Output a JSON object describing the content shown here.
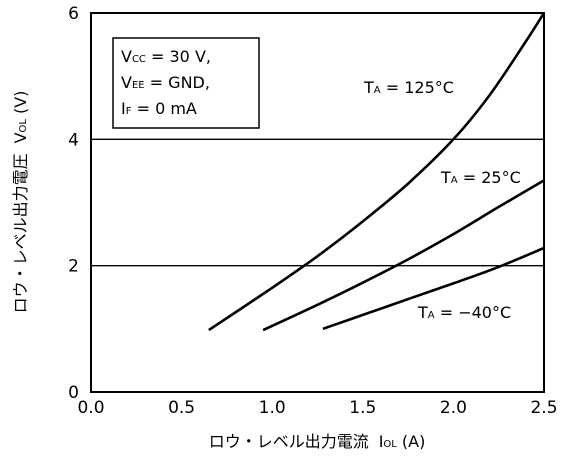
{
  "chart_data": {
    "type": "line",
    "xlabel": {
      "prefix": "ロウ・レベル出力電流",
      "symbol": "I",
      "sub": "OL",
      "unit": "(A)"
    },
    "ylabel": {
      "prefix": "ロウ・レベル出力電圧",
      "symbol": "V",
      "sub": "OL",
      "unit": "(V)"
    },
    "xlim": [
      0,
      2.5
    ],
    "ylim": [
      0,
      6
    ],
    "xticks": [
      "0.0",
      "0.5",
      "1.0",
      "1.5",
      "2.0",
      "2.5"
    ],
    "yticks": [
      "0",
      "2",
      "4",
      "6"
    ],
    "grid_y": [
      2,
      4
    ],
    "conditions": [
      {
        "pre": "V",
        "sub": "CC",
        "post": " = 30 V,"
      },
      {
        "pre": "V",
        "sub": "EE",
        "post": " = GND,"
      },
      {
        "pre": "I",
        "sub": "F",
        "post": " = 0 mA"
      }
    ],
    "series": [
      {
        "name_pre": "T",
        "name_sub": "A",
        "name_post": " = 125°C",
        "x": [
          0.65,
          1.0,
          1.25,
          1.5,
          1.75,
          2.0,
          2.2,
          2.4,
          2.5
        ],
        "y": [
          0.98,
          1.65,
          2.15,
          2.7,
          3.3,
          4.0,
          4.7,
          5.55,
          6.0
        ]
      },
      {
        "name_pre": "T",
        "name_sub": "A",
        "name_post": " = 25°C",
        "x": [
          0.95,
          1.25,
          1.5,
          1.75,
          2.0,
          2.25,
          2.5
        ],
        "y": [
          0.98,
          1.38,
          1.73,
          2.1,
          2.5,
          2.93,
          3.35
        ]
      },
      {
        "name_pre": "T",
        "name_sub": "A",
        "name_post": " = −40°C",
        "x": [
          1.28,
          1.5,
          1.75,
          2.0,
          2.25,
          2.5
        ],
        "y": [
          1.0,
          1.22,
          1.47,
          1.72,
          1.98,
          2.28
        ]
      }
    ]
  }
}
